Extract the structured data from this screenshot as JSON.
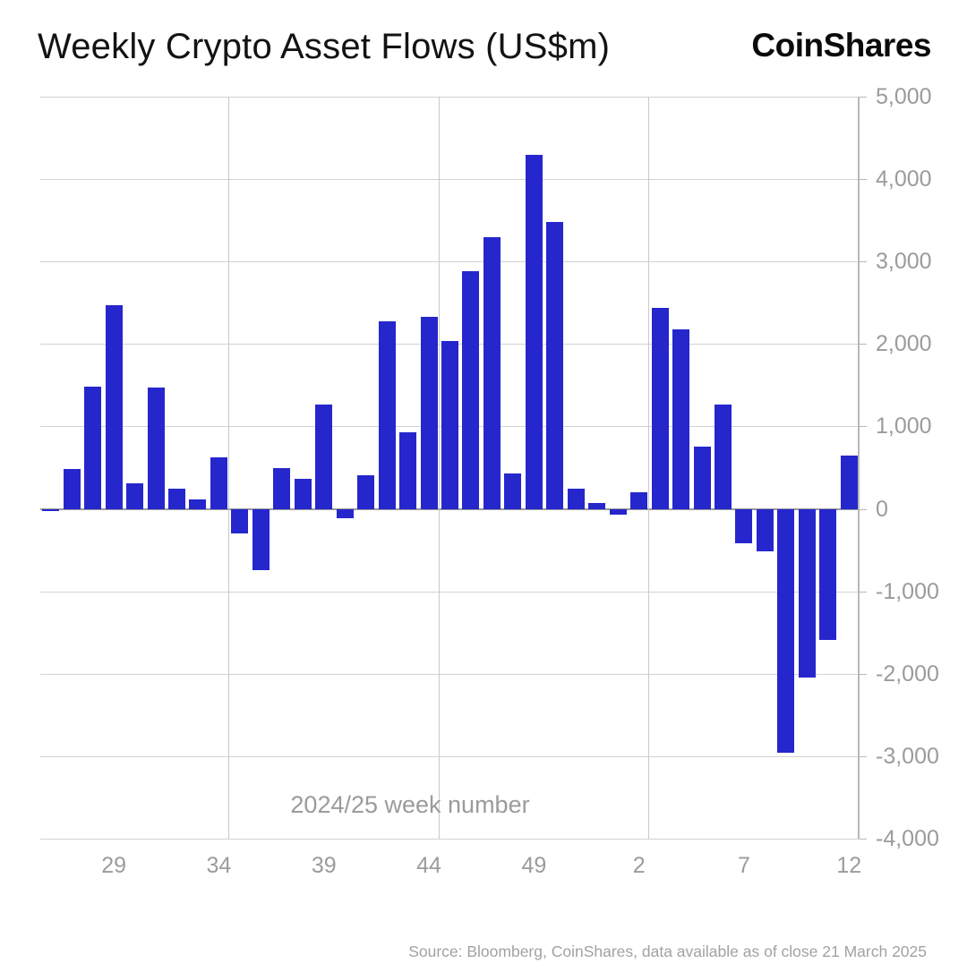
{
  "header": {
    "title": "Weekly Crypto Asset Flows (US$m)",
    "logo": "CoinShares"
  },
  "chart_data": {
    "type": "bar",
    "title": "Weekly Crypto Asset Flows (US$m)",
    "xlabel": "2024/25 week number",
    "ylabel": "",
    "ylim": [
      -4000,
      5000
    ],
    "grid": true,
    "legend_position": "none",
    "bar_color": "#2626cd",
    "categories": [
      "26",
      "27",
      "28",
      "29",
      "30",
      "31",
      "32",
      "33",
      "34",
      "35",
      "36",
      "37",
      "38",
      "39",
      "40",
      "41",
      "42",
      "43",
      "44",
      "45",
      "46",
      "47",
      "48",
      "49",
      "50",
      "51",
      "52",
      "1",
      "2",
      "3",
      "4",
      "5",
      "6",
      "7",
      "8",
      "9",
      "10",
      "11",
      "12"
    ],
    "values": [
      -25,
      480,
      1480,
      2470,
      310,
      1470,
      240,
      120,
      620,
      -300,
      -740,
      500,
      360,
      1270,
      -110,
      410,
      2270,
      930,
      2330,
      2040,
      2880,
      3300,
      430,
      4290,
      3480,
      250,
      75,
      -75,
      200,
      2440,
      2180,
      750,
      1270,
      -420,
      -520,
      -2960,
      -2050,
      -1590,
      650
    ],
    "y_ticks": [
      5000,
      4000,
      3000,
      2000,
      1000,
      0,
      -1000,
      -2000,
      -3000,
      -4000
    ],
    "y_tick_labels": [
      "5,000",
      "4,000",
      "3,000",
      "2,000",
      "1,000",
      "0",
      "-1,000",
      "-2,000",
      "-3,000",
      "-4,000"
    ],
    "x_tick_indices": [
      3,
      8,
      13,
      18,
      23,
      28,
      33,
      38
    ],
    "x_tick_labels": [
      "29",
      "34",
      "39",
      "44",
      "49",
      "2",
      "7",
      "12"
    ],
    "vertical_gridline_indices": [
      9,
      19,
      29,
      39
    ]
  },
  "footer": {
    "source": "Source: Bloomberg, CoinShares, data available as of close 21 March 2025"
  }
}
